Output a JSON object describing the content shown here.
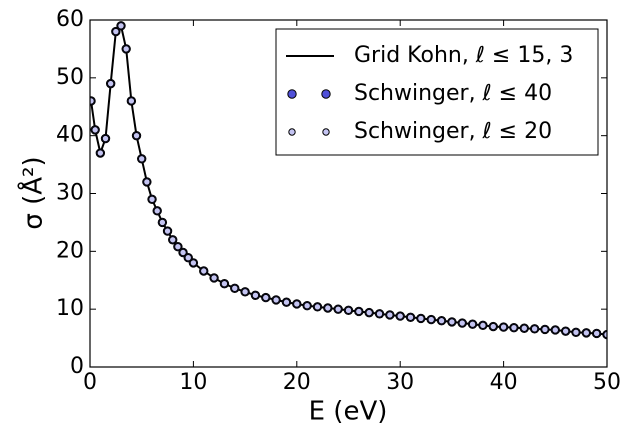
{
  "chart_data": {
    "type": "line",
    "xlabel": "E (eV)",
    "ylabel": "σ (Å²)",
    "x": [
      0.1,
      0.5,
      1,
      1.5,
      2,
      2.5,
      3,
      3.5,
      4,
      4.5,
      5,
      5.5,
      6,
      6.5,
      7,
      7.5,
      8,
      8.5,
      9,
      9.5,
      10,
      11,
      12,
      13,
      14,
      15,
      16,
      17,
      18,
      19,
      20,
      21,
      22,
      23,
      24,
      25,
      26,
      27,
      28,
      29,
      30,
      31,
      32,
      33,
      34,
      35,
      36,
      37,
      38,
      39,
      40,
      41,
      42,
      43,
      44,
      45,
      46,
      47,
      48,
      49,
      50
    ],
    "series": [
      {
        "name": "Grid Kohn, ℓ ≤ 15, 3",
        "type": "line",
        "color": "#000000",
        "values": [
          46,
          41,
          37,
          39.5,
          49,
          58,
          59,
          55,
          46,
          40,
          36,
          32,
          29,
          27,
          25,
          23.5,
          22,
          20.8,
          19.8,
          18.9,
          18,
          16.6,
          15.4,
          14.4,
          13.6,
          13,
          12.4,
          12,
          11.6,
          11.2,
          10.9,
          10.6,
          10.4,
          10.2,
          10,
          9.8,
          9.6,
          9.4,
          9.2,
          9,
          8.8,
          8.6,
          8.4,
          8.2,
          8,
          7.8,
          7.6,
          7.4,
          7.2,
          7,
          6.9,
          6.8,
          6.7,
          6.6,
          6.5,
          6.4,
          6.2,
          6,
          5.9,
          5.8,
          5.6
        ]
      },
      {
        "name": "Schwinger, ℓ ≤ 40",
        "type": "scatter",
        "color": "#5050d8",
        "values": [
          46,
          41,
          37,
          39.5,
          49,
          58,
          59,
          55,
          46,
          40,
          36,
          32,
          29,
          27,
          25,
          23.5,
          22,
          20.8,
          19.8,
          18.9,
          18,
          16.6,
          15.4,
          14.4,
          13.6,
          13,
          12.4,
          12,
          11.6,
          11.2,
          10.9,
          10.6,
          10.4,
          10.2,
          10,
          9.8,
          9.6,
          9.4,
          9.2,
          9,
          8.8,
          8.6,
          8.4,
          8.2,
          8,
          7.8,
          7.6,
          7.4,
          7.2,
          7,
          6.9,
          6.8,
          6.7,
          6.6,
          6.5,
          6.4,
          6.2,
          6,
          5.9,
          5.8,
          5.6
        ]
      },
      {
        "name": "Schwinger, ℓ ≤ 20",
        "type": "scatter",
        "color": "#c4c4f2",
        "values": [
          46,
          41,
          37,
          39.5,
          49,
          58,
          59,
          55,
          46,
          40,
          36,
          32,
          29,
          27,
          25,
          23.5,
          22,
          20.8,
          19.8,
          18.9,
          18,
          16.6,
          15.4,
          14.4,
          13.6,
          13,
          12.4,
          12,
          11.6,
          11.2,
          10.9,
          10.6,
          10.4,
          10.2,
          10,
          9.8,
          9.6,
          9.4,
          9.2,
          9,
          8.8,
          8.6,
          8.4,
          8.2,
          8,
          7.8,
          7.6,
          7.4,
          7.2,
          7,
          6.9,
          6.8,
          6.7,
          6.6,
          6.5,
          6.4,
          6.2,
          6,
          5.9,
          5.8,
          5.6
        ]
      }
    ],
    "xlim": [
      0,
      50
    ],
    "ylim": [
      0,
      60
    ],
    "xticks": [
      0,
      10,
      20,
      30,
      40,
      50
    ],
    "yticks": [
      0,
      10,
      20,
      30,
      40,
      50,
      60
    ],
    "legend": "upper right"
  }
}
